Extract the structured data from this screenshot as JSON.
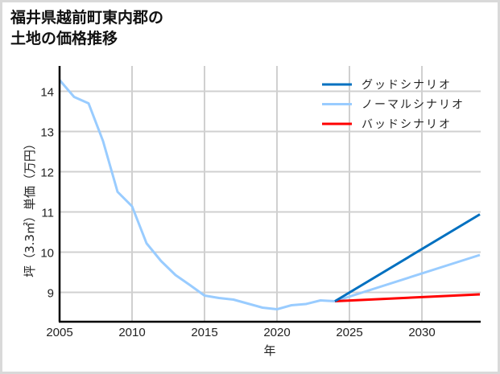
{
  "title_lines": [
    "福井県越前町東内郡の",
    "土地の価格推移"
  ],
  "chart_data": {
    "type": "line",
    "title": "福井県越前町東内郡の土地の価格推移",
    "xlabel": "年",
    "ylabel": "坪（3.3㎡）単価（万円）",
    "xlim": [
      2005,
      2034
    ],
    "ylim": [
      8.26,
      14.62
    ],
    "xticks": [
      2005,
      2010,
      2015,
      2020,
      2025,
      2030
    ],
    "yticks": [
      9,
      10,
      11,
      12,
      13,
      14
    ],
    "grid": true,
    "legend_position": "upper right",
    "series": [
      {
        "name": "グッドシナリオ",
        "color": "#0070c0",
        "x": [
          2024,
          2034
        ],
        "values": [
          8.78,
          10.94
        ]
      },
      {
        "name": "ノーマルシナリオ",
        "color": "#99ccff",
        "x": [
          2005,
          2006,
          2007,
          2008,
          2009,
          2010,
          2011,
          2012,
          2013,
          2014,
          2015,
          2016,
          2017,
          2018,
          2019,
          2020,
          2021,
          2022,
          2023,
          2024,
          2034
        ],
        "values": [
          14.28,
          13.86,
          13.7,
          12.76,
          11.5,
          11.14,
          10.22,
          9.78,
          9.43,
          9.18,
          8.92,
          8.86,
          8.82,
          8.72,
          8.62,
          8.58,
          8.68,
          8.71,
          8.8,
          8.78,
          9.93
        ]
      },
      {
        "name": "バッドシナリオ",
        "color": "#ff0000",
        "x": [
          2024,
          2034
        ],
        "values": [
          8.78,
          8.95
        ]
      }
    ]
  },
  "axis": {
    "x_tick_labels": [
      "2005",
      "2010",
      "2015",
      "2020",
      "2025",
      "2030"
    ],
    "y_tick_labels": [
      "14",
      "13",
      "12",
      "11",
      "10",
      "9"
    ],
    "xlabel": "年",
    "ylabel": "坪（3.3㎡）単価（万円）"
  },
  "legend": [
    {
      "label": "グッドシナリオ",
      "color": "#0070c0"
    },
    {
      "label": "ノーマルシナリオ",
      "color": "#99ccff"
    },
    {
      "label": "バッドシナリオ",
      "color": "#ff0000"
    }
  ]
}
